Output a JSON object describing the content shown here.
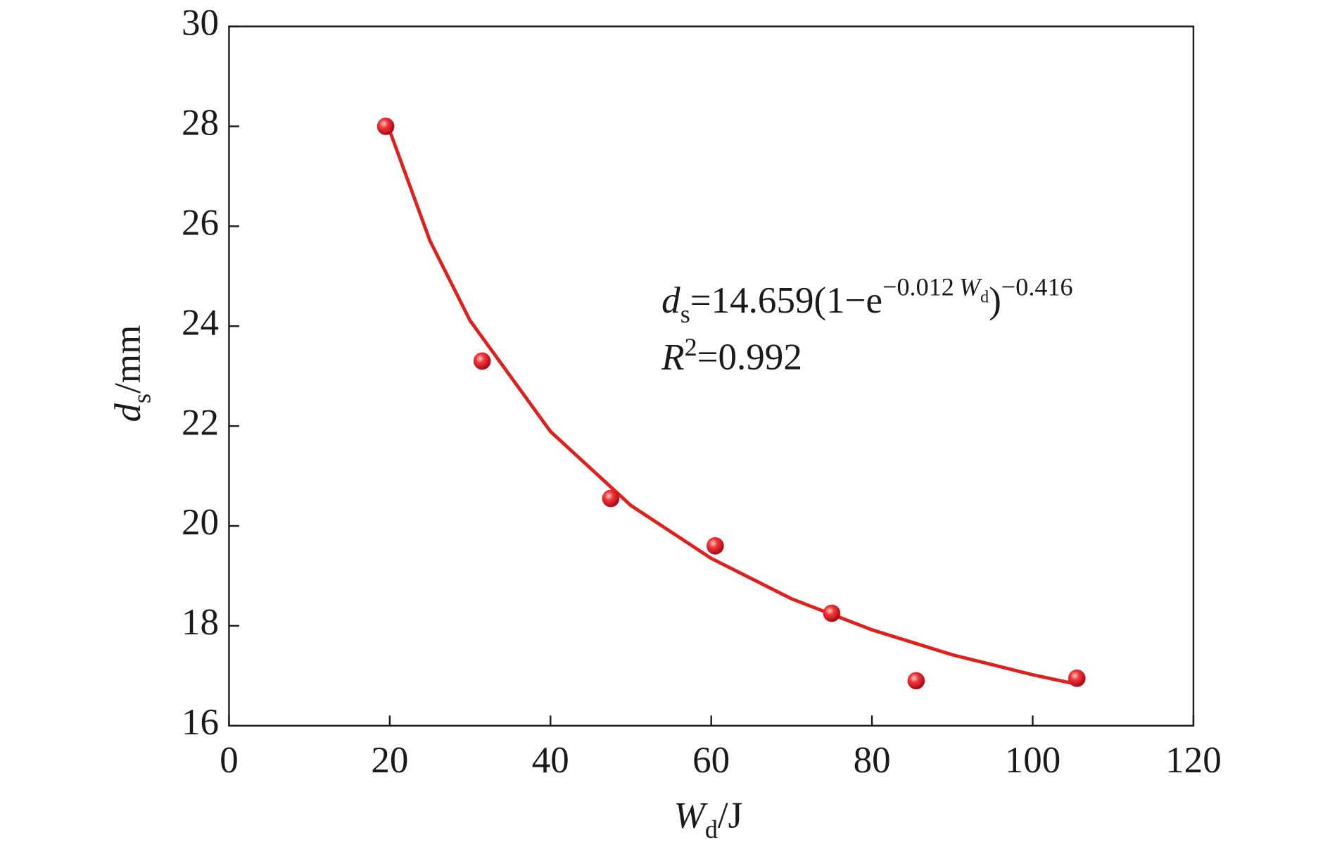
{
  "chart_data": {
    "type": "scatter",
    "x_label": [
      "W",
      "d",
      "/J"
    ],
    "y_label": [
      "d",
      "s",
      "/mm"
    ],
    "equation": [
      "d",
      "s",
      "=14.659(1−e",
      "−0.012",
      "W",
      "d",
      ")",
      "−0.416"
    ],
    "r2": [
      "R",
      "2",
      "=0.992"
    ],
    "xlim": [
      0,
      120
    ],
    "xticks": [
      0,
      20,
      40,
      60,
      80,
      100,
      120
    ],
    "ylim": [
      16,
      30
    ],
    "yticks": [
      16,
      18,
      20,
      22,
      24,
      26,
      28,
      30
    ],
    "series": [
      {
        "type": "scatter",
        "color": "#e8242c",
        "x": [
          19.5,
          31.5,
          47.5,
          60.5,
          75,
          85.5,
          105.5
        ],
        "values": [
          28.0,
          23.3,
          20.55,
          19.6,
          18.25,
          16.9,
          16.95
        ]
      },
      {
        "type": "line",
        "color": "#e0201c",
        "x": [
          19.5,
          25,
          30,
          40,
          50,
          60,
          70,
          80,
          90,
          100,
          105.5
        ],
        "values": [
          28.13,
          25.71,
          24.11,
          21.89,
          20.41,
          19.35,
          18.54,
          17.92,
          17.42,
          17.02,
          16.83
        ]
      }
    ]
  }
}
